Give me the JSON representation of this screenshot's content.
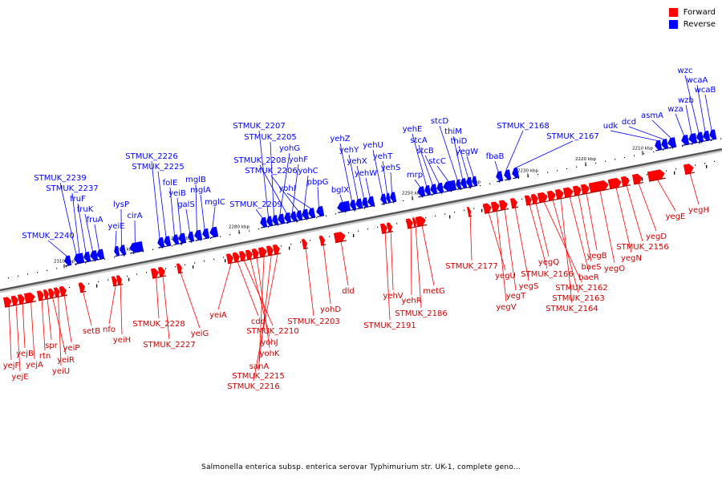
{
  "legend": {
    "forward": {
      "label": "Forward",
      "color": "#ff0000"
    },
    "reverse": {
      "label": "Reverse",
      "color": "#0000ff"
    }
  },
  "caption": "Salmonella enterica subsp. enterica serovar Typhimurium str. UK-1, complete geno...",
  "scale": {
    "ticks": [
      "2310 kbp",
      "2300 kbp",
      "2290 kbp",
      "2280 kbp",
      "2270 kbp",
      "2260 kbp",
      "2250 kbp",
      "2240 kbp",
      "2230 kbp",
      "2220 kbp",
      "2210 kbp",
      "2200 kbp"
    ]
  },
  "reverse_genes": [
    "STMUK_2240",
    "STMUK_2239",
    "STMUK_2237",
    "fruF",
    "fruK",
    "fruA",
    "yeiE",
    "lysP",
    "cirA",
    "STMUK_2226",
    "STMUK_2225",
    "folE",
    "yeiB",
    "galS",
    "mglB",
    "mglA",
    "mglC",
    "STMUK_2209",
    "STMUK_2207",
    "STMUK_2205",
    "yohG",
    "STMUK_2208",
    "yohF",
    "STMUK_2206",
    "yohC",
    "yohI",
    "pbpG",
    "bglX",
    "yehZ",
    "yehY",
    "yehX",
    "yehW",
    "yehU",
    "yehT",
    "yehS",
    "mrp",
    "yehE",
    "stcA",
    "stcB",
    "stcC",
    "stcD",
    "thiM",
    "thiD",
    "yegW",
    "fbaB",
    "STMUK_2168",
    "STMUK_2167",
    "udk",
    "dcd",
    "asmA",
    "wza",
    "wzb",
    "wzc",
    "wcaA",
    "wcaB"
  ],
  "forward_genes": [
    "yejF",
    "yejE",
    "yejB",
    "yejA",
    "rtn",
    "spr",
    "yeiR",
    "yeiU",
    "yeiP",
    "setB",
    "nfo",
    "yeiH",
    "STMUK_2228",
    "STMUK_2227",
    "yeiG",
    "yeiA",
    "cdd",
    "STMUK_2210",
    "yohJ",
    "yohK",
    "sanA",
    "STMUK_2215",
    "STMUK_2216",
    "STMUK_2203",
    "yohD",
    "dld",
    "STMUK_2191",
    "yehV",
    "yehR",
    "STMUK_2186",
    "metG",
    "STMUK_2177",
    "yegU",
    "yegV",
    "yegT",
    "yegS",
    "STMUK_2166",
    "yegQ",
    "STMUK_2162",
    "STMUK_2163",
    "STMUK_2164",
    "baeR",
    "baeS",
    "yegB",
    "yegO",
    "yegN",
    "STMUK_2156",
    "yegD",
    "yegE",
    "yegH"
  ]
}
